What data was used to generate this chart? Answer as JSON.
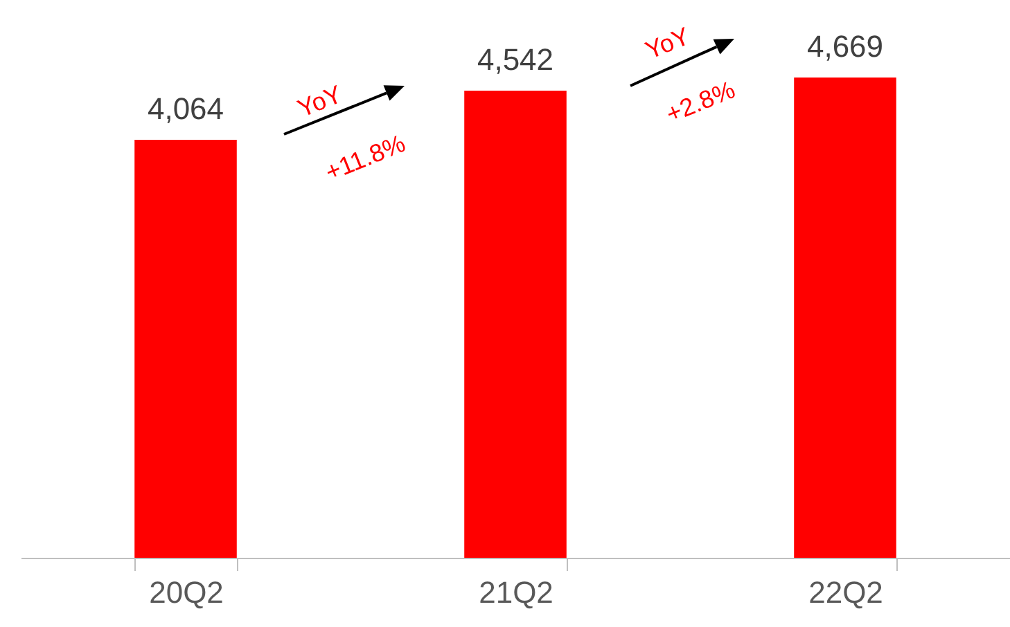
{
  "chart_data": {
    "type": "bar",
    "categories": [
      "20Q2",
      "21Q2",
      "22Q2"
    ],
    "values": [
      4064,
      4542,
      4669
    ],
    "color": "#ff0000",
    "data_labels": true,
    "value_labels": [
      "4,064",
      "4,542",
      "4,669"
    ],
    "annotations": [
      "YoY",
      "+11.8%",
      "YoY",
      "+2.8%"
    ]
  }
}
